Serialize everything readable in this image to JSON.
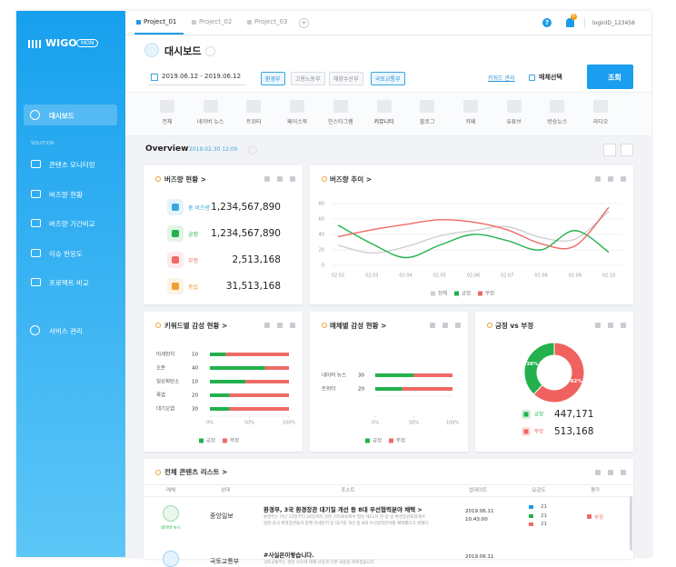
{
  "sidebar": {
    "logo": "WIGO",
    "logo_badge": "MON",
    "active": "대시보드",
    "section": "SOLUTION",
    "items": [
      "콘텐츠 모니터링",
      "버즈량 현황",
      "버즈량 기간비교",
      "이슈 반응도",
      "프로젝트 비교"
    ],
    "admin": "서비스 관리"
  },
  "tabs": [
    "Project_01",
    "Project_02",
    "Project_03"
  ],
  "tab_add": "+",
  "user": {
    "help": "?",
    "notifications": "6",
    "login": "loginID_123456"
  },
  "header": {
    "title": "대시보드",
    "date_range": "2019.06.12 - 2019.06.12",
    "tags": [
      {
        "text": "환경부",
        "selected": true
      },
      {
        "text": "고용노동부",
        "selected": false
      },
      {
        "text": "해양수산부",
        "selected": false
      },
      {
        "text": "국토교통부",
        "selected": true
      }
    ],
    "keyword_manage": "키워드 관리",
    "media_select": "매체선택",
    "search": "조회"
  },
  "media": [
    "전체",
    "네이버 뉴스",
    "트위터",
    "페이스북",
    "인스타그램",
    "커뮤니티",
    "블로그",
    "카페",
    "유튜브",
    "방송뉴스",
    "라디오"
  ],
  "overview": {
    "title": "Overview",
    "time": "2019.02.30 12:00"
  },
  "buzz_status": {
    "title": "버즈량 현황 >",
    "rows": [
      {
        "label": "총 버즈량",
        "value": "1,234,567,890",
        "color": "#3aa6e0"
      },
      {
        "label": "긍정",
        "value": "1,234,567,890",
        "color": "#22b14c"
      },
      {
        "label": "부정",
        "value": "2,513,168",
        "color": "#ee6a66"
      },
      {
        "label": "중립",
        "value": "31,513,168",
        "color": "#f0a030"
      }
    ]
  },
  "chart_data": [
    {
      "type": "line",
      "title": "버즈량 추이 >",
      "x": [
        "02.02",
        "02.03",
        "02.04",
        "02.05",
        "02.06",
        "02.07",
        "02.08",
        "02.09",
        "02.10"
      ],
      "series": [
        {
          "name": "전체",
          "color": "#cfcfcf",
          "values": [
            26,
            16,
            24,
            38,
            45,
            50,
            36,
            34,
            70
          ]
        },
        {
          "name": "긍정",
          "color": "#22b14c",
          "values": [
            52,
            28,
            10,
            26,
            40,
            32,
            20,
            45,
            17
          ]
        },
        {
          "name": "부정",
          "color": "#ee6a66",
          "values": [
            37,
            46,
            53,
            59,
            56,
            46,
            28,
            25,
            75
          ]
        }
      ],
      "ylim": [
        0,
        80
      ],
      "yticks": [
        0,
        20,
        40,
        60,
        80
      ],
      "grid": true
    },
    {
      "type": "hbar-stacked",
      "title": "키워드별 감성 현황 >",
      "categories": [
        "미세먼지",
        "오존",
        "일산화탄소",
        "폭염",
        "대기오염"
      ],
      "counts": [
        10,
        40,
        10,
        20,
        30
      ],
      "series": [
        {
          "name": "긍정",
          "color": "#22b14c",
          "values": [
            20,
            70,
            45,
            25,
            25
          ]
        },
        {
          "name": "부정",
          "color": "#ee6a66",
          "values": [
            80,
            30,
            55,
            75,
            75
          ]
        }
      ],
      "xlim": [
        0,
        100
      ],
      "xticks": [
        {
          "value": 0,
          "label": "0%"
        },
        {
          "value": 50,
          "label": "50%"
        },
        {
          "value": 100,
          "label": "100%"
        }
      ]
    },
    {
      "type": "hbar-stacked",
      "title": "매체별 감성 현황 >",
      "categories": [
        "네이버 뉴스",
        "트위터"
      ],
      "counts": [
        30,
        20
      ],
      "series": [
        {
          "name": "긍정",
          "color": "#22b14c",
          "values": [
            50,
            35
          ]
        },
        {
          "name": "부정",
          "color": "#ee6a66",
          "values": [
            50,
            65
          ]
        }
      ],
      "xlim": [
        0,
        100
      ],
      "xticks": [
        {
          "value": 0,
          "label": "0%"
        },
        {
          "value": 50,
          "label": "50%"
        },
        {
          "value": 100,
          "label": "100%"
        }
      ]
    },
    {
      "type": "pie",
      "title": "긍정 vs 부정",
      "categories": [
        "긍정",
        "부정"
      ],
      "values": [
        38,
        62
      ],
      "value_labels": [
        "38%",
        "62%"
      ],
      "colors": [
        "#22b14c",
        "#f0625f"
      ],
      "totals": [
        "447,171",
        "513,168"
      ]
    }
  ],
  "content_list": {
    "title": "전체 콘텐츠 리스트 >",
    "columns": [
      "매체",
      "상태",
      "포스트",
      "업데이트",
      "요감도",
      "평가"
    ],
    "rows": [
      {
        "media": "네이버 뉴스",
        "source": "중앙일보",
        "title": "환경부, 3국 환경장관 대기질 개선 등 8대 우선협력분야 채택 >",
        "body": [
          "환경부는 지난 23일부터 24일까지 일본 기타큐슈에서 열린 제21차 한·중·일 환경장관회의에서",
          "일본·중국 환경장관들과 함께 미세먼지 등 대기질 개선 등 8대 우선협력분야를 채택했다고 밝혔다."
        ],
        "date": "2019.06.11",
        "time": "10:43:00",
        "metrics": [
          "21",
          "21",
          "21"
        ],
        "rating": "부정"
      },
      {
        "source": "국토교통부",
        "title": "#사실은이렇습니다.",
        "body": [
          "국토교통부는 관련 보도에 대해 사실과 다른 내용을 바로잡습니다."
        ],
        "date": "2019.06.11"
      }
    ]
  }
}
